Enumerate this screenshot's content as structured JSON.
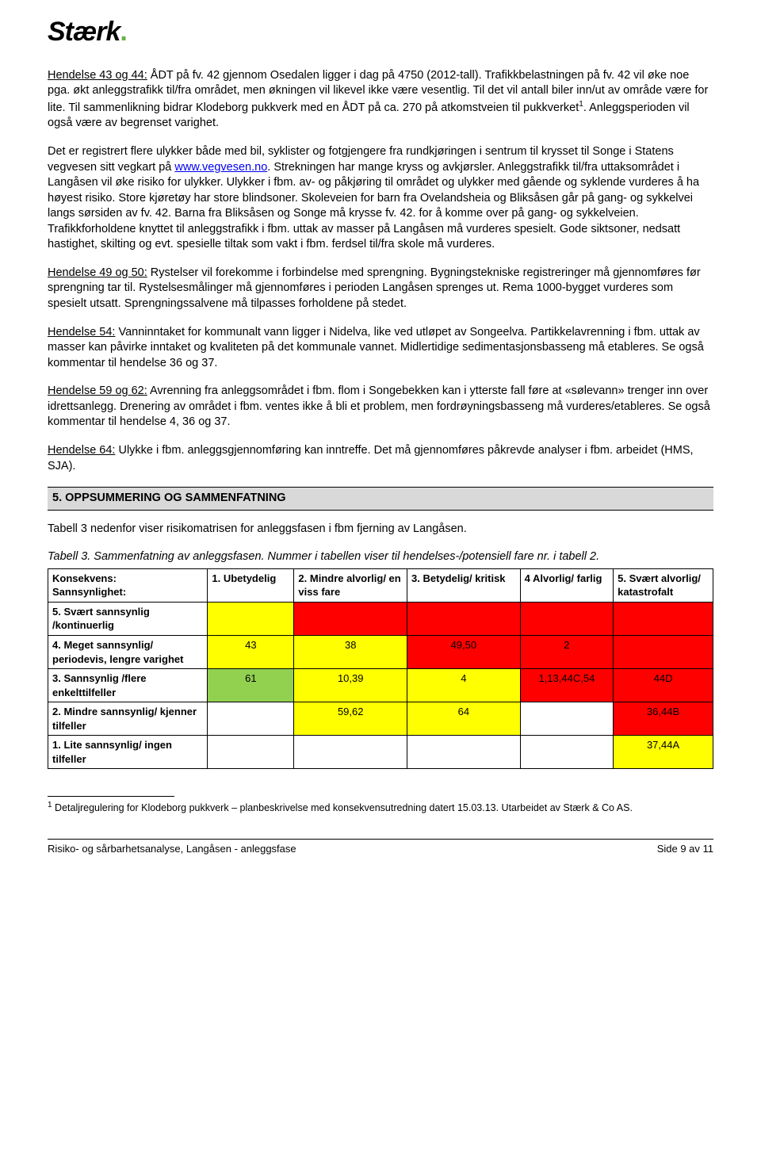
{
  "logo": {
    "text": "Stærk",
    "dot": "."
  },
  "paragraphs": {
    "p1_lead": "Hendelse 43 og 44:",
    "p1_body": " ÅDT på fv. 42 gjennom Osedalen ligger i dag på 4750 (2012-tall). Trafikkbelastningen på fv. 42 vil øke noe pga. økt anleggstrafikk til/fra området, men økningen vil likevel ikke være vesentlig. Til det vil antall biler inn/ut av område være for lite. Til sammenlikning bidrar Klodeborg pukkverk med en ÅDT på ca. 270 på atkomstveien til pukkverket",
    "p1_sup": "1",
    "p1_tail": ". Anleggsperioden vil også være av begrenset varighet.",
    "p2a": "Det er registrert flere ulykker både med bil, syklister og fotgjengere fra rundkjøringen i sentrum til krysset til Songe i Statens vegvesen sitt vegkart på ",
    "p2_link_text": "www.vegvesen.no",
    "p2b": ". Strekningen har mange kryss og avkjørsler. Anleggstrafikk til/fra uttaksområdet i Langåsen vil øke risiko for ulykker. Ulykker i fbm. av- og påkjøring til området og ulykker med gående og syklende vurderes å ha høyest risiko. Store kjøretøy har store blindsoner. Skoleveien for barn fra Ovelandsheia og Bliksåsen går på gang- og sykkelvei langs sørsiden av fv. 42. Barna fra Bliksåsen og Songe må krysse fv. 42. for å komme over på gang- og sykkelveien. Trafikkforholdene knyttet til anleggstrafikk i fbm. uttak av masser på Langåsen må vurderes spesielt. Gode siktsoner, nedsatt hastighet, skilting og evt. spesielle tiltak som vakt i fbm. ferdsel til/fra skole må vurderes.",
    "p3_lead": "Hendelse 49 og 50:",
    "p3_body": " Rystelser vil forekomme i forbindelse med sprengning. Bygningstekniske registreringer må gjennomføres før sprengning tar til. Rystelsesmålinger må gjennomføres i perioden Langåsen sprenges ut. Rema 1000-bygget vurderes som spesielt utsatt. Sprengningssalvene må tilpasses forholdene på stedet.",
    "p4_lead": "Hendelse 54:",
    "p4_body": " Vanninntaket for kommunalt vann ligger i Nidelva, like ved utløpet av Songeelva. Partikkelavrenning i fbm. uttak av masser kan påvirke inntaket og kvaliteten på det kommunale vannet. Midlertidige sedimentasjonsbasseng må etableres. Se også kommentar til hendelse 36 og 37.",
    "p5_lead": "Hendelse 59 og 62:",
    "p5_body": " Avrenning fra anleggsområdet i fbm. flom i Songebekken kan i ytterste fall føre at «sølevann» trenger inn over idrettsanlegg. Drenering av området i fbm. ventes ikke å bli et problem, men fordrøyningsbasseng må vurderes/etableres. Se også kommentar til hendelse 4, 36 og 37.",
    "p6_lead": "Hendelse 64:",
    "p6_body": " Ulykke i fbm. anleggsgjennomføring kan inntreffe. Det må gjennomføres påkrevde analyser i fbm. arbeidet (HMS, SJA).",
    "section_header": "5.   OPPSUMMERING OG SAMMENFATNING",
    "intro_after_header": "Tabell 3 nedenfor viser risikomatrisen for anleggsfasen i fbm fjerning av Langåsen.",
    "table_caption": "Tabell 3. Sammenfatning av anleggsfasen. Nummer i tabellen viser til hendelses-/potensiell fare nr. i tabell 2."
  },
  "risk_table": {
    "colors": {
      "green": "#92d050",
      "yellow": "#ffff00",
      "red": "#ff0000",
      "white": "#ffffff"
    },
    "col_widths": [
      "24%",
      "13%",
      "17%",
      "17%",
      "14%",
      "15%"
    ],
    "head_row": {
      "label_top": "Konsekvens:",
      "label_bottom": "Sannsynlighet:",
      "cols": [
        "1. Ubetydelig",
        "2. Mindre alvorlig/ en viss fare",
        "3. Betydelig/ kritisk",
        "4 Alvorlig/ farlig",
        "5. Svært alvorlig/ katastrofalt"
      ]
    },
    "rows": [
      {
        "label": "5. Svært sannsynlig /kontinuerlig",
        "cells": [
          {
            "text": "",
            "bg": "yellow"
          },
          {
            "text": "",
            "bg": "red"
          },
          {
            "text": "",
            "bg": "red"
          },
          {
            "text": "",
            "bg": "red"
          },
          {
            "text": "",
            "bg": "red"
          }
        ]
      },
      {
        "label": "4. Meget sannsynlig/ periodevis, lengre varighet",
        "cells": [
          {
            "text": "43",
            "bg": "yellow"
          },
          {
            "text": "38",
            "bg": "yellow"
          },
          {
            "text": "49,50",
            "bg": "red"
          },
          {
            "text": "2",
            "bg": "red"
          },
          {
            "text": "",
            "bg": "red"
          }
        ]
      },
      {
        "label": "3. Sannsynlig /flere enkelttilfeller",
        "cells": [
          {
            "text": "61",
            "bg": "green"
          },
          {
            "text": "10,39",
            "bg": "yellow"
          },
          {
            "text": "4",
            "bg": "yellow"
          },
          {
            "text": "1,13,44C,54",
            "bg": "red"
          },
          {
            "text": "44D",
            "bg": "red"
          }
        ]
      },
      {
        "label": "2. Mindre sannsynlig/ kjenner tilfeller",
        "cells": [
          {
            "text": "",
            "bg": "white"
          },
          {
            "text": "59,62",
            "bg": "yellow"
          },
          {
            "text": "64",
            "bg": "yellow"
          },
          {
            "text": "",
            "bg": "white"
          },
          {
            "text": "36,44B",
            "bg": "red"
          }
        ]
      },
      {
        "label": "1. Lite sannsynlig/ ingen tilfeller",
        "cells": [
          {
            "text": "",
            "bg": "white"
          },
          {
            "text": "",
            "bg": "white"
          },
          {
            "text": "",
            "bg": "white"
          },
          {
            "text": "",
            "bg": "white"
          },
          {
            "text": "37,44A",
            "bg": "yellow"
          }
        ]
      }
    ]
  },
  "footnote": {
    "marker": "1",
    "text": " Detaljregulering for Klodeborg pukkverk – planbeskrivelse med konsekvensutredning datert 15.03.13. Utarbeidet av Stærk & Co AS."
  },
  "footer": {
    "left": "Risiko- og sårbarhetsanalyse, Langåsen - anleggsfase",
    "right": "Side 9 av 11"
  }
}
